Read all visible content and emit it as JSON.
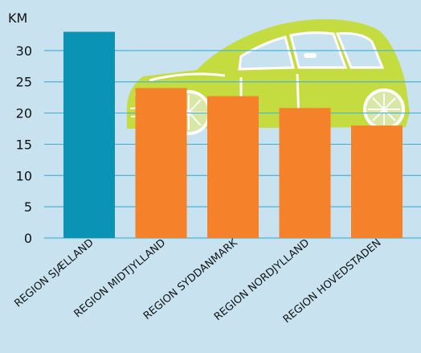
{
  "chart_data": {
    "type": "bar",
    "ylabel": "KM",
    "ylim": [
      0,
      35
    ],
    "yticks": [
      0,
      5,
      10,
      15,
      20,
      25,
      30
    ],
    "grid": true,
    "categories": [
      "REGION SJÆLLAND",
      "REGION MIDTJYLLAND",
      "REGION SYDDANMARK",
      "REGION NORDJYLLAND",
      "REGION HOVEDSTADEN"
    ],
    "values": [
      33,
      24,
      22.7,
      20.8,
      18
    ],
    "bar_colors": [
      "#0a93b5",
      "#f5812a",
      "#f5812a",
      "#f5812a",
      "#f5812a"
    ]
  },
  "colors": {
    "background": "#c8e3ef",
    "gridline": "#4ab3d6",
    "car_body": "#c5dc40",
    "car_detail": "#ffffff"
  },
  "illustration": {
    "icon": "car-icon"
  }
}
